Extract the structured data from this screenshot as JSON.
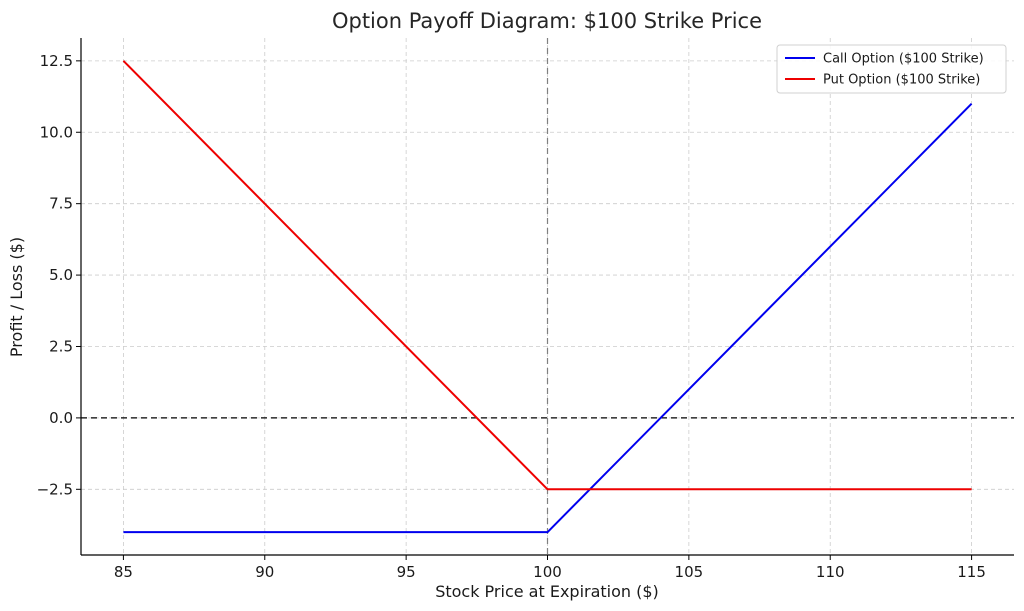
{
  "chart_data": {
    "type": "line",
    "title": "Option Payoff Diagram: $100 Strike Price",
    "xlabel": "Stock Price at Expiration ($)",
    "ylabel": "Profit / Loss ($)",
    "xlim": [
      83.5,
      116.5
    ],
    "ylim": [
      -4.8,
      13.3
    ],
    "x_ticks": [
      85,
      90,
      95,
      100,
      105,
      110,
      115
    ],
    "x_tick_labels": [
      "85",
      "90",
      "95",
      "100",
      "105",
      "110",
      "115"
    ],
    "y_ticks": [
      -2.5,
      0,
      2.5,
      5,
      7.5,
      10,
      12.5
    ],
    "y_tick_labels": [
      "−2.5",
      "0.0",
      "2.5",
      "5.0",
      "7.5",
      "10.0",
      "12.5"
    ],
    "grid": true,
    "legend_position": "top-right",
    "series": [
      {
        "name": "Call Option ($100 Strike)",
        "color": "#0000ee",
        "x": [
          85,
          100,
          115
        ],
        "y": [
          -4,
          -4,
          11
        ]
      },
      {
        "name": "Put Option ($100 Strike)",
        "color": "#ee0000",
        "x": [
          85,
          100,
          115
        ],
        "y": [
          12.5,
          -2.5,
          -2.5
        ]
      }
    ],
    "reference_lines": [
      {
        "orientation": "horizontal",
        "value": 0,
        "style": "dashed",
        "color": "#000000"
      },
      {
        "orientation": "vertical",
        "value": 100,
        "style": "dashed",
        "color": "#808080"
      }
    ]
  }
}
